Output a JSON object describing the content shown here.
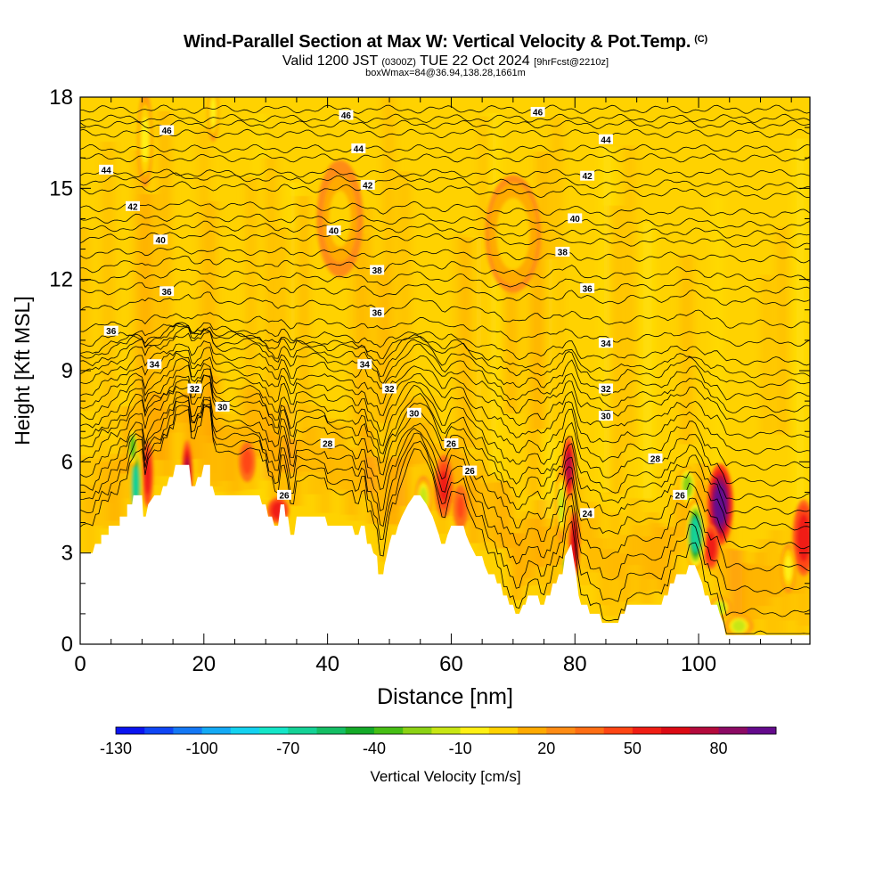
{
  "chart_data": {
    "type": "heatmap",
    "title": "Wind-Parallel Section at Max W: Vertical Velocity & Pot.Temp.",
    "copyright": "(C)",
    "subtitle_main": "Valid 1200 JST",
    "subtitle_utc": "(0300Z)",
    "subtitle_date": "TUE 22 Oct 2024",
    "subtitle_fcst": "[9hrFcst@2210z]",
    "subtitle2": "boxWmax=84@36.94,138.28,1661m",
    "xlabel": "Distance [nm]",
    "ylabel": "Height [Kft MSL]",
    "xlim": [
      0,
      118
    ],
    "ylim": [
      0,
      18
    ],
    "x_ticks": [
      0,
      20,
      40,
      60,
      80,
      100
    ],
    "y_ticks": [
      0,
      3,
      6,
      9,
      12,
      15,
      18
    ],
    "colorbar": {
      "label": "Vertical Velocity [cm/s]",
      "tick_labels": [
        -130,
        -100,
        -70,
        -40,
        -10,
        20,
        50,
        80
      ],
      "colors": [
        "#0a14f0",
        "#0f46f5",
        "#1478f5",
        "#14aaf5",
        "#14d2f0",
        "#14e6c8",
        "#14d296",
        "#14be64",
        "#14aa28",
        "#46be14",
        "#8cd214",
        "#c8e614",
        "#fff014",
        "#ffd200",
        "#ffaa00",
        "#ff8c14",
        "#ff6e14",
        "#ff4614",
        "#f01e14",
        "#dc0a14",
        "#b40a3c",
        "#8c0a64",
        "#640a8c"
      ]
    },
    "terrain_kft": [
      [
        0,
        3
      ],
      [
        2,
        3
      ],
      [
        2.4,
        3.3
      ],
      [
        3.4,
        3.3
      ],
      [
        3.4,
        3.6
      ],
      [
        4.6,
        3.6
      ],
      [
        4.6,
        3.9
      ],
      [
        6.4,
        3.9
      ],
      [
        6.4,
        4.2
      ],
      [
        7.6,
        4.2
      ],
      [
        7.6,
        4.6
      ],
      [
        8.4,
        4.6
      ],
      [
        8.6,
        4.9
      ],
      [
        10,
        4.9
      ],
      [
        10.2,
        4.2
      ],
      [
        10.6,
        4.2
      ],
      [
        11,
        4.6
      ],
      [
        12,
        4.9
      ],
      [
        13,
        4.9
      ],
      [
        13.4,
        5.2
      ],
      [
        14,
        5.2
      ],
      [
        14.4,
        5.5
      ],
      [
        15,
        5.5
      ],
      [
        15.4,
        5.9
      ],
      [
        17.6,
        5.9
      ],
      [
        18,
        5.2
      ],
      [
        18.6,
        5.2
      ],
      [
        19,
        5.5
      ],
      [
        19.6,
        5.5
      ],
      [
        20,
        5.9
      ],
      [
        21,
        5.9
      ],
      [
        21,
        5.2
      ],
      [
        21.4,
        5.2
      ],
      [
        21.8,
        4.9
      ],
      [
        29,
        4.9
      ],
      [
        29.4,
        4.6
      ],
      [
        30,
        4.6
      ],
      [
        30.4,
        4.2
      ],
      [
        31,
        4.2
      ],
      [
        31.4,
        3.9
      ],
      [
        32,
        3.9
      ],
      [
        32.4,
        4.6
      ],
      [
        33,
        4.6
      ],
      [
        33.2,
        4.2
      ],
      [
        33.6,
        4.2
      ],
      [
        34,
        3.6
      ],
      [
        34.6,
        3.6
      ],
      [
        35,
        4.2
      ],
      [
        39.6,
        4.2
      ],
      [
        40,
        3.9
      ],
      [
        44,
        3.9
      ],
      [
        44.4,
        3.6
      ],
      [
        45,
        3.6
      ],
      [
        45.4,
        3.9
      ],
      [
        46,
        3.9
      ],
      [
        46.4,
        3.3
      ],
      [
        47,
        3.3
      ],
      [
        47.4,
        3.0
      ],
      [
        48,
        2.9
      ],
      [
        48.2,
        2.3
      ],
      [
        49,
        2.3
      ],
      [
        49.2,
        2.6
      ],
      [
        50,
        3.3
      ],
      [
        50.4,
        3.6
      ],
      [
        51,
        3.6
      ],
      [
        51.4,
        3.9
      ],
      [
        52,
        4.2
      ],
      [
        53,
        4.6
      ],
      [
        54,
        4.9
      ],
      [
        55,
        4.9
      ],
      [
        56,
        4.6
      ],
      [
        57,
        4.2
      ],
      [
        58,
        3.6
      ],
      [
        58.4,
        3.3
      ],
      [
        59,
        3.3
      ],
      [
        59.4,
        3.6
      ],
      [
        60,
        3.9
      ],
      [
        62,
        3.9
      ],
      [
        62.4,
        3.6
      ],
      [
        63,
        3.3
      ],
      [
        64,
        2.9
      ],
      [
        65,
        2.9
      ],
      [
        65.4,
        2.6
      ],
      [
        66,
        2.3
      ],
      [
        67,
        2.3
      ],
      [
        67.4,
        2.0
      ],
      [
        68,
        2.0
      ],
      [
        68.4,
        1.6
      ],
      [
        69,
        1.6
      ],
      [
        69.4,
        1.3
      ],
      [
        70,
        1.3
      ],
      [
        70.4,
        1.0
      ],
      [
        71,
        1.0
      ],
      [
        71.6,
        1.3
      ],
      [
        72,
        1.3
      ],
      [
        72.4,
        1.6
      ],
      [
        74,
        1.6
      ],
      [
        74.4,
        1.3
      ],
      [
        75,
        1.3
      ],
      [
        75.4,
        1.6
      ],
      [
        76,
        1.6
      ],
      [
        76.4,
        2.0
      ],
      [
        77,
        2.0
      ],
      [
        77.4,
        2.3
      ],
      [
        78,
        2.3
      ],
      [
        78.4,
        2.9
      ],
      [
        79.4,
        3.3
      ],
      [
        80.2,
        2.3
      ],
      [
        80.6,
        1.6
      ],
      [
        81,
        1.3
      ],
      [
        82,
        1.3
      ],
      [
        82.4,
        1.0
      ],
      [
        84,
        1.0
      ],
      [
        84.4,
        0.7
      ],
      [
        85,
        0.7
      ],
      [
        87,
        0.7
      ],
      [
        87.4,
        1.0
      ],
      [
        88,
        1.0
      ],
      [
        88.4,
        1.3
      ],
      [
        94,
        1.3
      ],
      [
        94.4,
        1.6
      ],
      [
        95,
        1.6
      ],
      [
        95.4,
        2.0
      ],
      [
        96,
        2.0
      ],
      [
        96.4,
        2.3
      ],
      [
        98,
        2.3
      ],
      [
        98.4,
        2.6
      ],
      [
        99.4,
        2.6
      ],
      [
        100,
        2.3
      ],
      [
        100.6,
        2.0
      ],
      [
        101,
        1.6
      ],
      [
        101.6,
        1.6
      ],
      [
        102,
        1.3
      ],
      [
        103,
        1.3
      ],
      [
        103.4,
        1.0
      ],
      [
        104,
        0.7
      ],
      [
        104.4,
        0.3
      ],
      [
        118,
        0.3
      ]
    ],
    "theta_contours": [
      {
        "base": 3.2,
        "label": "24",
        "lx": 82,
        "ly": 4.3,
        "ridge": 2.4
      },
      {
        "base": 3.7,
        "label": "",
        "lx": 0,
        "ly": 0,
        "ridge": 2.2
      },
      {
        "base": 4.2,
        "label": "26",
        "lx": 33,
        "ly": 4.9,
        "ridge": 2.0
      },
      {
        "base": 4.7,
        "label": "26",
        "lx": 63,
        "ly": 5.7,
        "ridge": 1.8
      },
      {
        "base": 5.2,
        "label": "26",
        "lx": 97,
        "ly": 4.9,
        "ridge": 1.6
      },
      {
        "base": 5.7,
        "label": "26",
        "lx": 60,
        "ly": 6.6,
        "ridge": 1.5
      },
      {
        "base": 6.1,
        "label": "28",
        "lx": 40,
        "ly": 6.6,
        "ridge": 1.4
      },
      {
        "base": 6.4,
        "label": "28",
        "lx": 93,
        "ly": 6.1,
        "ridge": 1.3
      },
      {
        "base": 6.8,
        "label": "30",
        "lx": 85,
        "ly": 7.5,
        "ridge": 1.2
      },
      {
        "base": 7.2,
        "label": "30",
        "lx": 54,
        "ly": 7.6,
        "ridge": 1.1
      },
      {
        "base": 7.6,
        "label": "30",
        "lx": 23,
        "ly": 7.8,
        "ridge": 1.0
      },
      {
        "base": 8.0,
        "label": "32",
        "lx": 50,
        "ly": 8.4,
        "ridge": 0.9
      },
      {
        "base": 8.4,
        "label": "32",
        "lx": 85,
        "ly": 8.4,
        "ridge": 0.8
      },
      {
        "base": 8.7,
        "label": "32",
        "lx": 18.5,
        "ly": 8.4,
        "ridge": 0.8
      },
      {
        "base": 9.0,
        "label": "",
        "lx": 0,
        "ly": 0,
        "ridge": 0.7
      },
      {
        "base": 9.3,
        "label": "34",
        "lx": 12,
        "ly": 9.2,
        "ridge": 0.6
      },
      {
        "base": 9.5,
        "label": "34",
        "lx": 46,
        "ly": 9.2,
        "ridge": 0.5
      },
      {
        "base": 9.8,
        "label": "34",
        "lx": 85,
        "ly": 9.9,
        "ridge": 0.4
      },
      {
        "base": 10.3,
        "label": "36",
        "lx": 5,
        "ly": 10.3,
        "ridge": 0.3
      },
      {
        "base": 10.9,
        "label": "36",
        "lx": 48,
        "ly": 10.9,
        "ridge": 0.3
      },
      {
        "base": 11.5,
        "label": "36",
        "lx": 14,
        "ly": 11.6,
        "ridge": 0.2
      },
      {
        "base": 11.9,
        "label": "36",
        "lx": 82,
        "ly": 11.7,
        "ridge": 0.2
      },
      {
        "base": 12.3,
        "label": "38",
        "lx": 48,
        "ly": 12.3,
        "ridge": 0.2
      },
      {
        "base": 12.8,
        "label": "38",
        "lx": 78,
        "ly": 12.9,
        "ridge": 0.1
      },
      {
        "base": 13.3,
        "label": "40",
        "lx": 13,
        "ly": 13.3,
        "ridge": 0.1
      },
      {
        "base": 13.6,
        "label": "40",
        "lx": 41,
        "ly": 13.6,
        "ridge": 0.1
      },
      {
        "base": 13.9,
        "label": "40",
        "lx": 80,
        "ly": 14.0,
        "ridge": 0.1
      },
      {
        "base": 14.3,
        "label": "42",
        "lx": 8.5,
        "ly": 14.4,
        "ridge": 0.1
      },
      {
        "base": 14.9,
        "label": "42",
        "lx": 46.5,
        "ly": 15.1,
        "ridge": 0.1
      },
      {
        "base": 15.2,
        "label": "42",
        "lx": 82,
        "ly": 15.4,
        "ridge": 0.1
      },
      {
        "base": 15.5,
        "label": "44",
        "lx": 4.2,
        "ly": 15.6,
        "ridge": 0.0
      },
      {
        "base": 16.0,
        "label": "44",
        "lx": 45,
        "ly": 16.3,
        "ridge": 0.0
      },
      {
        "base": 16.3,
        "label": "44",
        "lx": 85,
        "ly": 16.6,
        "ridge": 0.0
      },
      {
        "base": 16.8,
        "label": "46",
        "lx": 14,
        "ly": 16.9,
        "ridge": 0.0
      },
      {
        "base": 17.1,
        "label": "46",
        "lx": 43,
        "ly": 17.4,
        "ridge": 0.0
      },
      {
        "base": 17.3,
        "label": "46",
        "lx": 74,
        "ly": 17.5,
        "ridge": 0.0
      },
      {
        "base": 17.6,
        "label": "",
        "lx": 0,
        "ly": 0,
        "ridge": 0.0
      }
    ],
    "features": [
      {
        "type": "updraft",
        "x": 17.3,
        "y": 5.6,
        "w": 0.6,
        "h": 1.4,
        "v": 60
      },
      {
        "type": "updraft",
        "x": 10.9,
        "y": 5.6,
        "w": 0.6,
        "h": 1.4,
        "v": 40
      },
      {
        "type": "downdraft",
        "x": 9.0,
        "y": 5.2,
        "w": 0.7,
        "h": 1.8,
        "v": -80
      },
      {
        "type": "downdraft",
        "x": 8.5,
        "y": 6.5,
        "w": 0.6,
        "h": 0.8,
        "v": -50
      },
      {
        "type": "updraft",
        "x": 27.0,
        "y": 6.0,
        "w": 0.9,
        "h": 0.8,
        "v": 30
      },
      {
        "type": "updraft",
        "x": 32.0,
        "y": 4.4,
        "w": 1.2,
        "h": 0.5,
        "v": 40
      },
      {
        "type": "updraft",
        "x": 58.8,
        "y": 5.2,
        "w": 1.0,
        "h": 1.3,
        "v": 35
      },
      {
        "type": "updraft",
        "x": 61.5,
        "y": 4.5,
        "w": 0.8,
        "h": 0.9,
        "v": 25
      },
      {
        "type": "downdraft",
        "x": 55.5,
        "y": 4.8,
        "w": 0.9,
        "h": 0.9,
        "v": -35
      },
      {
        "type": "updraft",
        "x": 79.0,
        "y": 5.8,
        "w": 0.7,
        "h": 1.3,
        "v": 55
      },
      {
        "type": "updraft",
        "x": 79.9,
        "y": 3.3,
        "w": 0.6,
        "h": 1.4,
        "v": 50
      },
      {
        "type": "downdraft",
        "x": 77.8,
        "y": 4.6,
        "w": 0.6,
        "h": 1.5,
        "v": -30
      },
      {
        "type": "downdraft",
        "x": 78.6,
        "y": 2.6,
        "w": 0.5,
        "h": 0.4,
        "v": -60
      },
      {
        "type": "updraft",
        "x": 103.5,
        "y": 4.6,
        "w": 1.4,
        "h": 1.7,
        "v": 84
      },
      {
        "type": "updraft",
        "x": 102.0,
        "y": 3.2,
        "w": 0.9,
        "h": 0.9,
        "v": 40
      },
      {
        "type": "downdraft",
        "x": 99.5,
        "y": 3.6,
        "w": 1.1,
        "h": 1.5,
        "v": -80
      },
      {
        "type": "downdraft",
        "x": 98.2,
        "y": 5.2,
        "w": 1.0,
        "h": 0.8,
        "v": -40
      },
      {
        "type": "downdraft",
        "x": 103.5,
        "y": 1.2,
        "w": 1.2,
        "h": 0.4,
        "v": -30
      },
      {
        "type": "downdraft",
        "x": 106.5,
        "y": 0.6,
        "w": 1.5,
        "h": 0.4,
        "v": -30
      },
      {
        "type": "updraft",
        "x": 117.0,
        "y": 3.5,
        "w": 1.2,
        "h": 1.6,
        "v": 40
      },
      {
        "type": "downdraft",
        "x": 114.5,
        "y": 2.5,
        "w": 0.8,
        "h": 1.0,
        "v": -20
      },
      {
        "type": "downdraft",
        "x": 10.5,
        "y": 16.6,
        "w": 0.8,
        "h": 2.0,
        "v": -20
      },
      {
        "type": "downdraft",
        "x": 21.5,
        "y": 17.5,
        "w": 0.6,
        "h": 1.2,
        "v": -20
      },
      {
        "type": "downdraft",
        "x": 70.0,
        "y": 13.5,
        "w": 3.0,
        "h": 2.5,
        "v": -12
      },
      {
        "type": "downdraft",
        "x": 42.0,
        "y": 14.0,
        "w": 2.5,
        "h": 2.5,
        "v": -10
      }
    ]
  }
}
